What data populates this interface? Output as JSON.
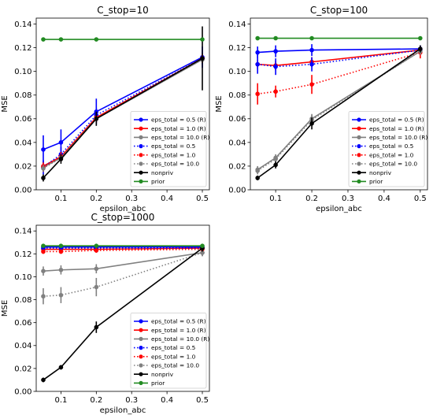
{
  "chart_data": [
    {
      "type": "line",
      "title": "C_stop=10",
      "xlabel": "epsilon_abc",
      "ylabel": "MSE",
      "xlim": [
        0.03,
        0.52
      ],
      "ylim": [
        0.0,
        0.145
      ],
      "x": [
        0.05,
        0.1,
        0.2,
        0.5
      ],
      "xticks": [
        0.1,
        0.2,
        0.3,
        0.4,
        0.5
      ],
      "xtick_labels": [
        "0.1",
        "0.2",
        "0.3",
        "0.4",
        "0.5"
      ],
      "yticks": [
        0.0,
        0.02,
        0.04,
        0.06,
        0.08,
        0.1,
        0.12,
        0.14
      ],
      "ytick_labels": [
        "0.00",
        "0.02",
        "0.04",
        "0.06",
        "0.08",
        "0.10",
        "0.12",
        "0.14"
      ],
      "grid": false,
      "legend_position": "lower-right",
      "series": [
        {
          "name": "eps_total = 0.5 (R)",
          "color": "#0000ff",
          "style": "solid",
          "values": [
            0.034,
            0.04,
            0.066,
            0.112
          ],
          "errors": [
            0.012,
            0.011,
            0.011,
            0.009
          ]
        },
        {
          "name": "eps_total = 1.0 (R)",
          "color": "#ff0000",
          "style": "solid",
          "values": [
            0.02,
            0.028,
            0.061,
            0.111
          ],
          "errors": [
            0.004,
            0.004,
            0.004,
            0.004
          ]
        },
        {
          "name": "eps_total = 10.0 (R)",
          "color": "#808080",
          "style": "solid",
          "values": [
            0.019,
            0.027,
            0.06,
            0.11
          ],
          "errors": [
            0.003,
            0.003,
            0.003,
            0.003
          ]
        },
        {
          "name": "eps_total = 0.5",
          "color": "#0000ff",
          "style": "dotted",
          "values": [
            0.019,
            0.03,
            0.063,
            0.111
          ],
          "errors": [
            0.006,
            0.006,
            0.006,
            0.005
          ]
        },
        {
          "name": "eps_total = 1.0",
          "color": "#ff0000",
          "style": "dotted",
          "values": [
            0.019,
            0.028,
            0.061,
            0.111
          ],
          "errors": [
            0.004,
            0.004,
            0.004,
            0.004
          ]
        },
        {
          "name": "eps_total = 10.0",
          "color": "#808080",
          "style": "dotted",
          "values": [
            0.018,
            0.027,
            0.06,
            0.11
          ],
          "errors": [
            0.003,
            0.003,
            0.003,
            0.003
          ]
        },
        {
          "name": "nonpriv",
          "color": "#000000",
          "style": "solid",
          "values": [
            0.01,
            0.026,
            0.06,
            0.111
          ],
          "errors": [
            0.003,
            0.004,
            0.006,
            0.027
          ]
        },
        {
          "name": "prior",
          "color": "#228b22",
          "style": "solid",
          "values": [
            0.127,
            0.127,
            0.127,
            0.127
          ],
          "errors": [
            0.0,
            0.0,
            0.0,
            0.0
          ]
        }
      ]
    },
    {
      "type": "line",
      "title": "C_stop=100",
      "xlabel": "epsilon_abc",
      "ylabel": "MSE",
      "xlim": [
        0.03,
        0.52
      ],
      "ylim": [
        0.0,
        0.145
      ],
      "x": [
        0.05,
        0.1,
        0.2,
        0.5
      ],
      "xticks": [
        0.0,
        0.1,
        0.2,
        0.3,
        0.4,
        0.5
      ],
      "xtick_labels": [
        "0.0",
        "0.1",
        "0.2",
        "0.3",
        "0.4",
        "0.5"
      ],
      "yticks": [
        0.0,
        0.02,
        0.04,
        0.06,
        0.08,
        0.1,
        0.12,
        0.14
      ],
      "ytick_labels": [
        "0.00",
        "0.02",
        "0.04",
        "0.06",
        "0.08",
        "0.10",
        "0.12",
        "0.14"
      ],
      "grid": false,
      "legend_position": "lower-right",
      "series": [
        {
          "name": "eps_total = 0.5 (R)",
          "color": "#0000ff",
          "style": "solid",
          "values": [
            0.116,
            0.117,
            0.118,
            0.119
          ],
          "errors": [
            0.005,
            0.005,
            0.005,
            0.003
          ]
        },
        {
          "name": "eps_total = 1.0 (R)",
          "color": "#ff0000",
          "style": "solid",
          "values": [
            0.106,
            0.105,
            0.108,
            0.118
          ],
          "errors": [
            0.004,
            0.004,
            0.004,
            0.003
          ]
        },
        {
          "name": "eps_total = 10.0 (R)",
          "color": "#808080",
          "style": "solid",
          "values": [
            0.017,
            0.027,
            0.06,
            0.117
          ],
          "errors": [
            0.003,
            0.003,
            0.004,
            0.003
          ]
        },
        {
          "name": "eps_total = 0.5",
          "color": "#0000ff",
          "style": "dotted",
          "values": [
            0.106,
            0.104,
            0.106,
            0.118
          ],
          "errors": [
            0.008,
            0.007,
            0.006,
            0.004
          ]
        },
        {
          "name": "eps_total = 1.0",
          "color": "#ff0000",
          "style": "dotted",
          "values": [
            0.081,
            0.083,
            0.089,
            0.116
          ],
          "errors": [
            0.009,
            0.005,
            0.008,
            0.005
          ]
        },
        {
          "name": "eps_total = 10.0",
          "color": "#808080",
          "style": "dotted",
          "values": [
            0.016,
            0.026,
            0.059,
            0.117
          ],
          "errors": [
            0.003,
            0.003,
            0.004,
            0.003
          ]
        },
        {
          "name": "nonpriv",
          "color": "#000000",
          "style": "solid",
          "values": [
            0.01,
            0.021,
            0.056,
            0.119
          ],
          "errors": [
            0.002,
            0.003,
            0.005,
            0.003
          ]
        },
        {
          "name": "prior",
          "color": "#228b22",
          "style": "solid",
          "values": [
            0.128,
            0.128,
            0.128,
            0.128
          ],
          "errors": [
            0.0,
            0.0,
            0.0,
            0.0
          ]
        }
      ]
    },
    {
      "type": "line",
      "title": "C_stop=1000",
      "xlabel": "epsilon_abc",
      "ylabel": "MSE",
      "xlim": [
        0.03,
        0.52
      ],
      "ylim": [
        0.0,
        0.145
      ],
      "x": [
        0.05,
        0.1,
        0.2,
        0.5
      ],
      "xticks": [
        0.0,
        0.1,
        0.2,
        0.3,
        0.4,
        0.5
      ],
      "xtick_labels": [
        "0.0",
        "0.1",
        "0.2",
        "0.3",
        "0.4",
        "0.5"
      ],
      "yticks": [
        0.0,
        0.02,
        0.04,
        0.06,
        0.08,
        0.1,
        0.12,
        0.14
      ],
      "ytick_labels": [
        "0.00",
        "0.02",
        "0.04",
        "0.06",
        "0.08",
        "0.10",
        "0.12",
        "0.14"
      ],
      "grid": false,
      "legend_position": "lower-right",
      "series": [
        {
          "name": "eps_total = 0.5 (R)",
          "color": "#0000ff",
          "style": "solid",
          "values": [
            0.126,
            0.126,
            0.126,
            0.126
          ],
          "errors": [
            0.002,
            0.002,
            0.002,
            0.002
          ]
        },
        {
          "name": "eps_total = 1.0 (R)",
          "color": "#ff0000",
          "style": "solid",
          "values": [
            0.124,
            0.124,
            0.124,
            0.125
          ],
          "errors": [
            0.002,
            0.002,
            0.002,
            0.002
          ]
        },
        {
          "name": "eps_total = 10.0 (R)",
          "color": "#808080",
          "style": "solid",
          "values": [
            0.105,
            0.106,
            0.107,
            0.121
          ],
          "errors": [
            0.004,
            0.004,
            0.004,
            0.003
          ]
        },
        {
          "name": "eps_total = 0.5",
          "color": "#0000ff",
          "style": "dotted",
          "values": [
            0.125,
            0.125,
            0.125,
            0.125
          ],
          "errors": [
            0.002,
            0.002,
            0.002,
            0.002
          ]
        },
        {
          "name": "eps_total = 1.0",
          "color": "#ff0000",
          "style": "dotted",
          "values": [
            0.122,
            0.122,
            0.123,
            0.124
          ],
          "errors": [
            0.002,
            0.002,
            0.002,
            0.002
          ]
        },
        {
          "name": "eps_total = 10.0",
          "color": "#808080",
          "style": "dotted",
          "values": [
            0.083,
            0.084,
            0.091,
            0.121
          ],
          "errors": [
            0.007,
            0.007,
            0.008,
            0.003
          ]
        },
        {
          "name": "nonpriv",
          "color": "#000000",
          "style": "solid",
          "values": [
            0.01,
            0.021,
            0.056,
            0.125
          ],
          "errors": [
            0.002,
            0.002,
            0.005,
            0.003
          ]
        },
        {
          "name": "prior",
          "color": "#228b22",
          "style": "solid",
          "values": [
            0.127,
            0.127,
            0.127,
            0.127
          ],
          "errors": [
            0.0,
            0.0,
            0.0,
            0.0
          ]
        }
      ]
    }
  ]
}
